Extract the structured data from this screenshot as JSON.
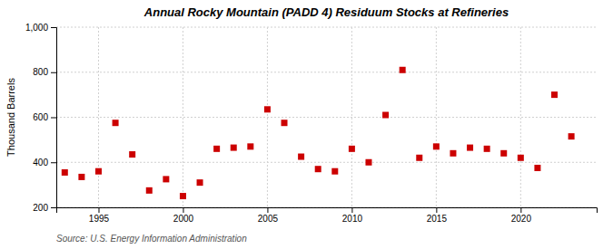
{
  "chart_data": {
    "type": "scatter",
    "title": "Annual Rocky Mountain (PADD 4) Residuum Stocks at Refineries",
    "y_label": "Thousand Barrels",
    "source": "Source: U.S. Energy Information Administration",
    "x": [
      1993,
      1994,
      1995,
      1996,
      1997,
      1998,
      1999,
      2000,
      2001,
      2002,
      2003,
      2004,
      2005,
      2006,
      2007,
      2008,
      2009,
      2010,
      2011,
      2012,
      2013,
      2014,
      2015,
      2016,
      2017,
      2018,
      2019,
      2020,
      2021,
      2022,
      2023
    ],
    "values": [
      355,
      335,
      360,
      575,
      435,
      275,
      325,
      250,
      310,
      460,
      465,
      470,
      635,
      575,
      425,
      370,
      360,
      460,
      400,
      610,
      810,
      420,
      470,
      440,
      465,
      460,
      440,
      420,
      375,
      700,
      515
    ],
    "color": "#cc0000",
    "marker": "square",
    "xlim": [
      1992.5,
      2024.5
    ],
    "xticks": [
      1995,
      2000,
      2005,
      2010,
      2015,
      2020
    ],
    "ylim": [
      200,
      1000
    ],
    "yticks": [
      200,
      400,
      600,
      800,
      {
        "value": 1000,
        "label": "1,000"
      }
    ],
    "grid": true
  }
}
